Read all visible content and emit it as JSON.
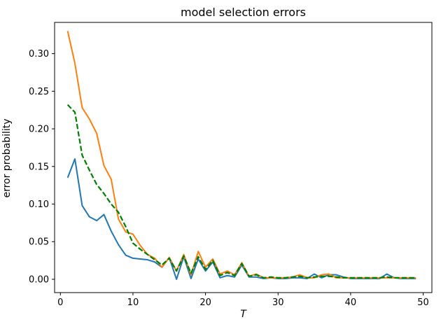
{
  "figure": {
    "title": "model selection errors",
    "xlabel": "T",
    "ylabel": "error probability"
  },
  "chart_data": {
    "type": "line",
    "title": "model selection errors",
    "xlabel": "T",
    "ylabel": "error probability",
    "xlim": [
      -0.8,
      51.2
    ],
    "ylim": [
      -0.0177,
      0.3415
    ],
    "xticks": [
      0,
      10,
      20,
      30,
      40,
      50
    ],
    "xtick_labels": [
      "0",
      "10",
      "20",
      "30",
      "40",
      "50"
    ],
    "yticks": [
      0.0,
      0.05,
      0.1,
      0.15,
      0.2,
      0.25,
      0.3
    ],
    "ytick_labels": [
      "0.00",
      "0.05",
      "0.10",
      "0.15",
      "0.20",
      "0.25",
      "0.30"
    ],
    "grid": false,
    "legend": false,
    "x": [
      1,
      2,
      3,
      4,
      5,
      6,
      7,
      8,
      9,
      10,
      11,
      12,
      13,
      14,
      15,
      16,
      17,
      18,
      19,
      20,
      21,
      22,
      23,
      24,
      25,
      26,
      27,
      28,
      29,
      30,
      31,
      32,
      33,
      34,
      35,
      36,
      37,
      38,
      39,
      40,
      41,
      42,
      43,
      44,
      45,
      46,
      47,
      48,
      49
    ],
    "series": [
      {
        "name": "series-blue",
        "color": "#1f77b4",
        "linestyle": "solid",
        "linewidth": 2,
        "values": [
          0.135,
          0.16,
          0.098,
          0.083,
          0.078,
          0.086,
          0.064,
          0.046,
          0.032,
          0.028,
          0.027,
          0.026,
          0.023,
          0.016,
          0.029,
          0.0,
          0.03,
          0.001,
          0.027,
          0.011,
          0.023,
          0.002,
          0.005,
          0.003,
          0.019,
          0.003,
          0.003,
          0.001,
          0.002,
          0.001,
          0.001,
          0.002,
          0.002,
          0.001,
          0.007,
          0.002,
          0.006,
          0.006,
          0.003,
          0.001,
          0.001,
          0.001,
          0.001,
          0.001,
          0.007,
          0.002,
          0.001,
          0.001,
          0.001
        ]
      },
      {
        "name": "series-orange",
        "color": "#ff7f0e",
        "linestyle": "solid",
        "linewidth": 2,
        "values": [
          0.33,
          0.287,
          0.228,
          0.213,
          0.194,
          0.151,
          0.133,
          0.08,
          0.063,
          0.06,
          0.045,
          0.033,
          0.028,
          0.016,
          0.029,
          0.011,
          0.033,
          0.006,
          0.037,
          0.016,
          0.027,
          0.007,
          0.011,
          0.006,
          0.022,
          0.004,
          0.007,
          0.002,
          0.002,
          0.002,
          0.002,
          0.003,
          0.006,
          0.002,
          0.002,
          0.006,
          0.007,
          0.002,
          0.002,
          0.002,
          0.002,
          0.002,
          0.002,
          0.002,
          0.002,
          0.002,
          0.002,
          0.002,
          0.002
        ]
      },
      {
        "name": "series-green-dashed",
        "color": "#008000",
        "linestyle": "dashed",
        "linewidth": 2.2,
        "values": [
          0.232,
          0.222,
          0.165,
          0.145,
          0.126,
          0.114,
          0.1,
          0.089,
          0.07,
          0.048,
          0.04,
          0.033,
          0.026,
          0.019,
          0.028,
          0.011,
          0.031,
          0.008,
          0.03,
          0.013,
          0.025,
          0.005,
          0.009,
          0.005,
          0.021,
          0.004,
          0.006,
          0.002,
          0.003,
          0.002,
          0.002,
          0.003,
          0.004,
          0.002,
          0.003,
          0.004,
          0.004,
          0.003,
          0.002,
          0.002,
          0.002,
          0.002,
          0.002,
          0.002,
          0.003,
          0.002,
          0.002,
          0.002,
          0.002
        ]
      }
    ]
  }
}
